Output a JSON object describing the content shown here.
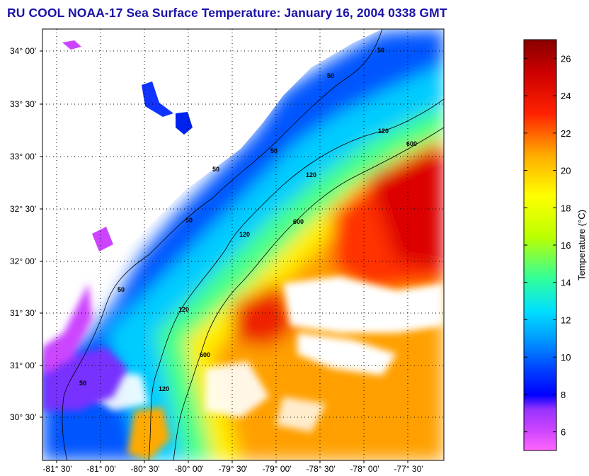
{
  "title": "RU COOL  NOAA-17  Sea Surface Temperature:  January 16, 2004 0338 GMT",
  "map": {
    "lat_ticks": [
      "34° 00'",
      "33° 30'",
      "33° 00'",
      "32° 30'",
      "32° 00'",
      "31° 30'",
      "31° 00'",
      "30° 30'"
    ],
    "lon_ticks": [
      "-81° 30'",
      "-81° 00'",
      "-80° 30'",
      "-80° 00'",
      "-79° 30'",
      "-79° 00'",
      "-78° 30'",
      "-78° 00'",
      "-77° 30'"
    ],
    "contour_labels": [
      "50",
      "50",
      "50",
      "50",
      "50",
      "50",
      "50",
      "120",
      "120",
      "120",
      "120",
      "120",
      "600",
      "600",
      "600"
    ]
  },
  "colorbar": {
    "title": "Temperature (°C)",
    "ticks": [
      6,
      8,
      10,
      12,
      14,
      16,
      18,
      20,
      22,
      24,
      26
    ],
    "range": [
      5,
      27
    ],
    "colors": [
      "#ff66ff",
      "#9933ff",
      "#0000ff",
      "#0088ff",
      "#00e0ff",
      "#33ff99",
      "#bbff00",
      "#ffff00",
      "#ff9900",
      "#ff0000",
      "#990000"
    ]
  }
}
